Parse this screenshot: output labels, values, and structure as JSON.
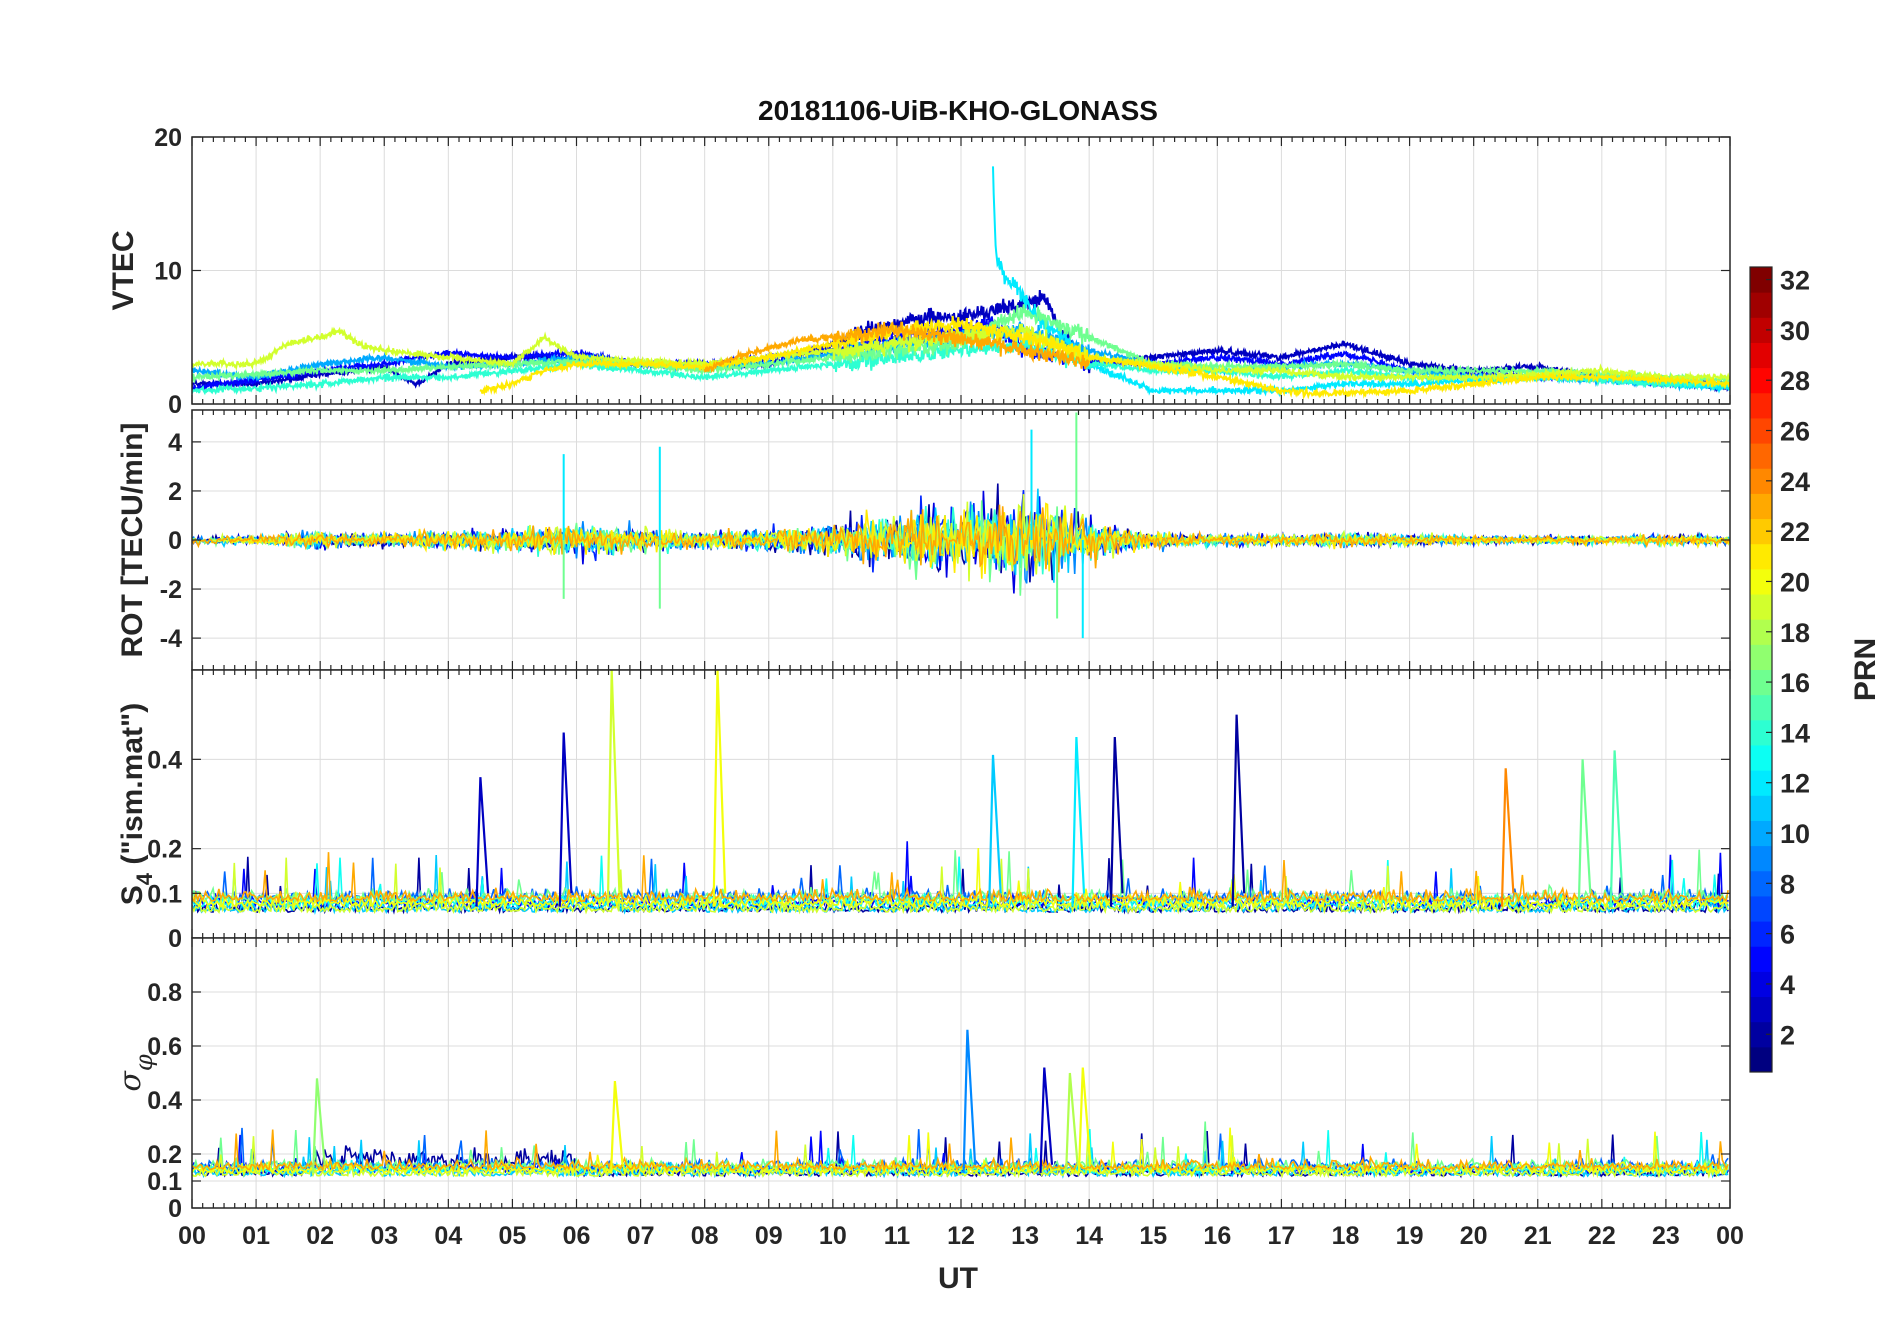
{
  "figure": {
    "title": "20181106-UiB-KHO-GLONASS",
    "xlabel": "UT",
    "x_tick_labels": [
      "00",
      "01",
      "02",
      "03",
      "04",
      "05",
      "06",
      "07",
      "08",
      "09",
      "10",
      "11",
      "12",
      "13",
      "14",
      "15",
      "16",
      "17",
      "18",
      "19",
      "20",
      "21",
      "22",
      "23",
      "00"
    ]
  },
  "chart_data": [
    {
      "type": "line",
      "panel": "vtec",
      "ylabel": "VTEC",
      "xlim": [
        0,
        24
      ],
      "ylim": [
        0,
        20
      ],
      "yticks": [
        0,
        10,
        20
      ],
      "grid": true,
      "series": [
        {
          "prn": 3,
          "x": [
            0,
            1,
            2,
            3,
            3.5,
            4,
            5,
            6,
            7,
            8,
            9,
            10,
            10.5,
            11,
            11.5,
            12,
            12.5,
            13,
            13.3,
            13.6,
            14,
            15,
            16,
            17,
            18,
            19,
            20,
            21,
            22,
            23,
            24
          ],
          "y": [
            1.5,
            1.5,
            2.2,
            2.8,
            1.5,
            3,
            3.5,
            3.5,
            3,
            2.8,
            3,
            4.5,
            5.5,
            6,
            6.5,
            6.5,
            7,
            7.5,
            8,
            5,
            3,
            3.5,
            4,
            3.5,
            4.5,
            3,
            2.5,
            2.8,
            2,
            1.8,
            1.2
          ]
        },
        {
          "prn": 5,
          "x": [
            0,
            1,
            2,
            3,
            4,
            5,
            6,
            7,
            8,
            9,
            10,
            11,
            12,
            12.5,
            13,
            14,
            15,
            16,
            17,
            18,
            19,
            20,
            21,
            22,
            23,
            24
          ],
          "y": [
            1.2,
            1.8,
            2.5,
            3,
            3.8,
            3.5,
            3.8,
            3,
            3,
            3.5,
            4,
            5,
            5.5,
            6,
            4,
            3.2,
            3,
            3.5,
            3,
            3.8,
            2.5,
            2.2,
            2,
            2,
            1.5,
            1.5
          ]
        },
        {
          "prn": 10,
          "x": [
            0,
            1,
            2,
            3,
            4,
            5,
            6,
            7,
            8,
            9,
            10,
            11,
            12,
            13,
            14,
            15,
            16,
            17,
            18,
            19,
            20,
            21,
            22,
            23,
            24
          ],
          "y": [
            2.5,
            2,
            3,
            3.5,
            2.8,
            3,
            3.5,
            3,
            2.8,
            3,
            3.8,
            4.5,
            5,
            5.5,
            4,
            3,
            2.5,
            2.8,
            3,
            2.5,
            2,
            2,
            1.8,
            1.5,
            1.3
          ]
        },
        {
          "prn": 12,
          "x": [
            12.5,
            12.55,
            12.7,
            12.9,
            13.1,
            13.3,
            13.6,
            14,
            14.5,
            15,
            16,
            17,
            18,
            19,
            20,
            21,
            22,
            23,
            24
          ],
          "y": [
            17.5,
            11,
            9.5,
            8.5,
            7,
            6,
            5,
            3,
            2,
            1,
            1,
            1,
            1.5,
            1.5,
            1.8,
            2,
            2,
            1.5,
            1.2
          ]
        },
        {
          "prn": 14,
          "x": [
            0,
            1,
            2,
            3,
            4,
            5,
            6,
            7,
            8,
            9,
            10,
            11,
            12,
            13,
            14,
            15,
            16,
            17,
            18,
            19,
            20,
            21,
            22,
            23,
            24
          ],
          "y": [
            1,
            1.2,
            1.5,
            2,
            2,
            2.5,
            3,
            2.5,
            2,
            2.5,
            3,
            3.5,
            4,
            4.5,
            3,
            2.5,
            2.5,
            2,
            2.5,
            2,
            2,
            2,
            1.8,
            1.5,
            1.5
          ]
        },
        {
          "prn": 16,
          "x": [
            0,
            1,
            2,
            3,
            4,
            5,
            6,
            7,
            8,
            9,
            10,
            11,
            12,
            13,
            14,
            15,
            16,
            17,
            18,
            19,
            20,
            21,
            22,
            23,
            24
          ],
          "y": [
            2,
            2.2,
            2.5,
            2.5,
            2.8,
            3,
            3.2,
            3,
            2.5,
            3,
            3.5,
            4,
            4.5,
            7,
            5,
            3,
            2.8,
            2.8,
            3,
            2.5,
            2.5,
            2.5,
            2.2,
            2,
            1.8
          ]
        },
        {
          "prn": 19,
          "x": [
            0,
            1,
            1.5,
            2,
            2.3,
            2.6,
            3,
            4,
            5,
            5.5,
            6,
            7,
            8,
            9,
            10,
            11,
            12,
            13,
            14,
            15,
            16,
            17,
            18,
            19,
            20,
            21,
            22,
            23,
            24
          ],
          "y": [
            3,
            3,
            4.5,
            5,
            5.5,
            4.5,
            4,
            3.5,
            3,
            5,
            3.5,
            3.2,
            3,
            3.5,
            4,
            4.5,
            5,
            5.5,
            3.5,
            3,
            2.5,
            2.5,
            2,
            2,
            2,
            2.2,
            2.5,
            2,
            2
          ]
        },
        {
          "prn": 21,
          "x": [
            4.5,
            5,
            5.5,
            6,
            7,
            8,
            9,
            10,
            11,
            12,
            13,
            14,
            15,
            16,
            16.5,
            17,
            17.5,
            18,
            19,
            20,
            21,
            22,
            23,
            24
          ],
          "y": [
            1,
            1.5,
            2.5,
            3,
            3,
            2.8,
            3.5,
            4.5,
            5.5,
            6,
            5,
            3.5,
            2.8,
            2,
            1.5,
            1,
            0.8,
            0.8,
            1,
            1.5,
            2,
            2,
            1.8,
            1.5
          ]
        },
        {
          "prn": 23,
          "x": [
            8,
            8.5,
            9,
            9.5,
            10,
            10.5,
            11,
            11.5,
            12,
            12.5,
            13,
            13.5,
            14
          ],
          "y": [
            2.5,
            3.5,
            4.2,
            4.8,
            5,
            5.3,
            5.5,
            5.2,
            4.8,
            4.5,
            4,
            3.5,
            3
          ]
        }
      ]
    },
    {
      "type": "line",
      "panel": "rot",
      "ylabel": "ROT [TECU/min]",
      "xlim": [
        0,
        24
      ],
      "ylim": [
        -5.3,
        5.3
      ],
      "yticks": [
        -4,
        -2,
        0,
        2,
        4
      ],
      "grid": true,
      "note_values": "ROT fluctuates about 0; amplitude envelope by UT hour",
      "envelope": {
        "x": [
          0,
          1,
          2,
          3,
          4,
          5,
          6,
          7,
          8,
          9,
          10,
          11,
          12,
          13,
          14,
          15,
          16,
          17,
          18,
          19,
          20,
          21,
          22,
          23,
          24
        ],
        "amp": [
          0.3,
          0.3,
          0.6,
          0.5,
          0.7,
          0.8,
          1.2,
          0.9,
          0.6,
          0.8,
          1.3,
          2,
          2.5,
          3.5,
          1.5,
          0.6,
          0.4,
          0.4,
          0.5,
          0.4,
          0.3,
          0.3,
          0.3,
          0.4,
          0.3
        ]
      },
      "spikes": [
        {
          "x": 5.8,
          "y": 3.5
        },
        {
          "x": 5.8,
          "y": -2.4
        },
        {
          "x": 7.3,
          "y": 3.8
        },
        {
          "x": 7.3,
          "y": -2.8
        },
        {
          "x": 13.1,
          "y": 4.5
        },
        {
          "x": 13.8,
          "y": 5.2
        },
        {
          "x": 13.9,
          "y": -4
        },
        {
          "x": 13.5,
          "y": -3.2
        }
      ]
    },
    {
      "type": "line",
      "panel": "s4",
      "ylabel": "S4 (\"ism.mat\")",
      "xlim": [
        0,
        24
      ],
      "ylim": [
        0,
        0.6
      ],
      "yticks": [
        0,
        0.1,
        0.2,
        0.4
      ],
      "grid": true,
      "baseline": 0.07,
      "spikes": [
        {
          "x": 4.5,
          "y": 0.36,
          "prn": 3
        },
        {
          "x": 5.8,
          "y": 0.46,
          "prn": 3
        },
        {
          "x": 6.55,
          "y": 0.6,
          "prn": 19
        },
        {
          "x": 8.2,
          "y": 0.6,
          "prn": 20
        },
        {
          "x": 12.5,
          "y": 0.41,
          "prn": 11
        },
        {
          "x": 13.8,
          "y": 0.45,
          "prn": 12
        },
        {
          "x": 14.4,
          "y": 0.45,
          "prn": 2
        },
        {
          "x": 16.3,
          "y": 0.5,
          "prn": 2
        },
        {
          "x": 20.5,
          "y": 0.38,
          "prn": 24
        },
        {
          "x": 21.7,
          "y": 0.4,
          "prn": 16
        },
        {
          "x": 22.2,
          "y": 0.42,
          "prn": 15
        }
      ]
    },
    {
      "type": "line",
      "panel": "sigma_phi",
      "ylabel": "σφ",
      "xlim": [
        0,
        24
      ],
      "ylim": [
        0,
        1
      ],
      "yticks": [
        0,
        0.1,
        0.2,
        0.4,
        0.6,
        0.8
      ],
      "grid": true,
      "baseline": 0.13,
      "spikes": [
        {
          "x": 1.95,
          "y": 0.48,
          "prn": 17
        },
        {
          "x": 6.6,
          "y": 0.47,
          "prn": 20
        },
        {
          "x": 12.1,
          "y": 0.66,
          "prn": 9
        },
        {
          "x": 13.3,
          "y": 0.52,
          "prn": 3
        },
        {
          "x": 13.7,
          "y": 0.5,
          "prn": 18
        },
        {
          "x": 13.9,
          "y": 0.52,
          "prn": 20
        }
      ]
    }
  ],
  "colorbar": {
    "label": "PRN",
    "range": [
      1,
      32
    ],
    "ticks": [
      2,
      4,
      6,
      8,
      10,
      12,
      14,
      16,
      18,
      20,
      22,
      24,
      26,
      28,
      30,
      32
    ],
    "colormap": "jet"
  }
}
